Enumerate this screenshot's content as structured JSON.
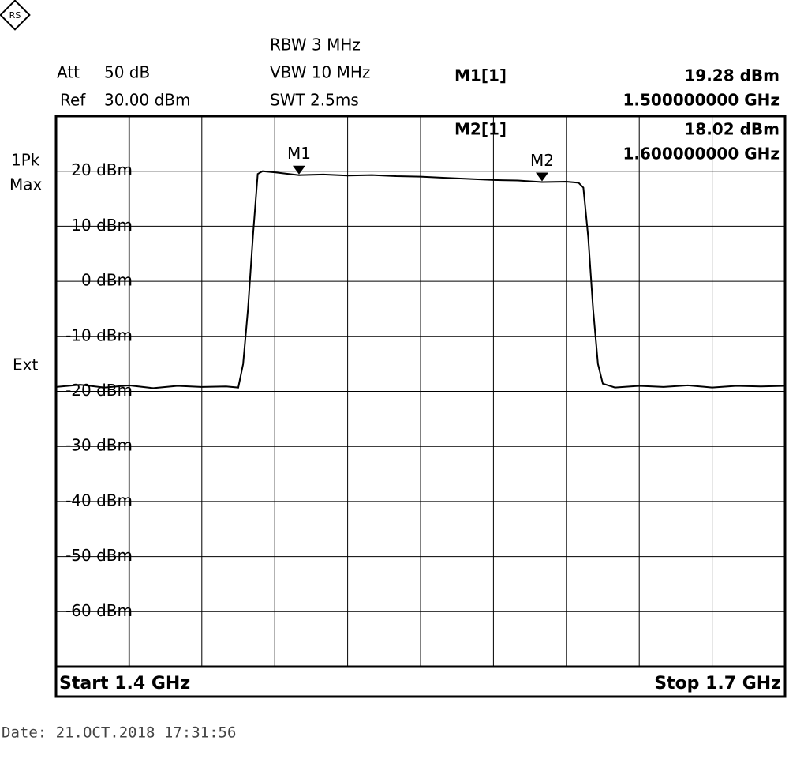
{
  "header": {
    "att_label": "Att",
    "att_value": "50 dB",
    "ref_label": "Ref",
    "ref_value": "30.00 dBm",
    "rbw": "RBW 3 MHz",
    "vbw": "VBW 10 MHz",
    "swt": "SWT 2.5ms",
    "detector_1": "1Pk",
    "detector_2": "Max",
    "trigger": "Ext",
    "marker_readouts": [
      {
        "name": "M1[1]",
        "level": "19.28 dBm",
        "frequency": "1.500000000 GHz"
      },
      {
        "name": "M2[1]",
        "level": "18.02 dBm",
        "frequency": "1.600000000 GHz"
      }
    ]
  },
  "chart_data": {
    "type": "line",
    "color": "#000000",
    "x": [
      1.4,
      1.41,
      1.42,
      1.43,
      1.44,
      1.45,
      1.46,
      1.47,
      1.475,
      1.477,
      1.479,
      1.481,
      1.483,
      1.485,
      1.49,
      1.5,
      1.51,
      1.52,
      1.53,
      1.54,
      1.55,
      1.56,
      1.57,
      1.58,
      1.59,
      1.6,
      1.61,
      1.615,
      1.617,
      1.619,
      1.621,
      1.623,
      1.625,
      1.63,
      1.64,
      1.65,
      1.66,
      1.67,
      1.68,
      1.69,
      1.7
    ],
    "values": [
      -19.2,
      -18.8,
      -19.3,
      -18.9,
      -19.4,
      -19.0,
      -19.2,
      -19.1,
      -19.3,
      -15,
      -5,
      8,
      19.5,
      20.0,
      19.8,
      19.28,
      19.4,
      19.2,
      19.3,
      19.1,
      19.0,
      18.8,
      18.6,
      18.4,
      18.3,
      18.02,
      18.1,
      17.9,
      17.0,
      8,
      -5,
      -15,
      -18.6,
      -19.3,
      -19.0,
      -19.2,
      -18.9,
      -19.3,
      -19.0,
      -19.1,
      -19.0
    ],
    "xlim": [
      1.4,
      1.7
    ],
    "xgrid": [
      1.43,
      1.46,
      1.49,
      1.52,
      1.55,
      1.58,
      1.61,
      1.64,
      1.67
    ],
    "ylim": [
      -70,
      30
    ],
    "yticks": [
      {
        "value": 20,
        "label": "20 dBm"
      },
      {
        "value": 10,
        "label": "10 dBm"
      },
      {
        "value": 0,
        "label": "0 dBm"
      },
      {
        "value": -10,
        "label": "-10 dBm"
      },
      {
        "value": -20,
        "label": "-20 dBm"
      },
      {
        "value": -30,
        "label": "-30 dBm"
      },
      {
        "value": -40,
        "label": "-40 dBm"
      },
      {
        "value": -50,
        "label": "-50 dBm"
      },
      {
        "value": -60,
        "label": "-60 dBm"
      }
    ],
    "grid": true,
    "markers": [
      {
        "label": "M1",
        "x": 1.5,
        "value": 19.28
      },
      {
        "label": "M2",
        "x": 1.6,
        "value": 18.02
      }
    ],
    "start_label": "Start 1.4 GHz",
    "stop_label": "Stop 1.7 GHz"
  },
  "footer": {
    "date": "Date: 21.OCT.2018  17:31:56"
  }
}
